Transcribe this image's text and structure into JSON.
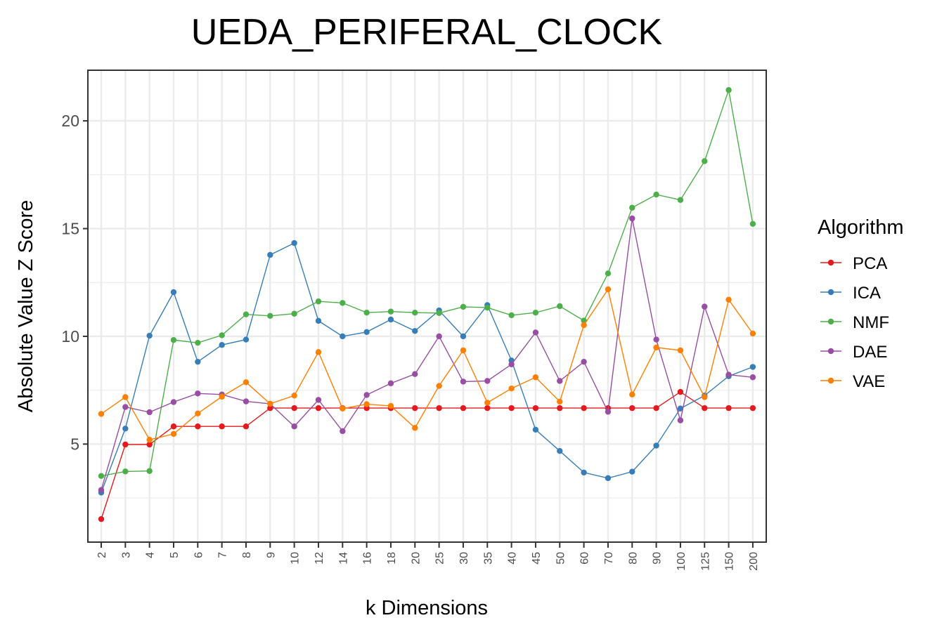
{
  "chart_data": {
    "type": "line",
    "title": "UEDA_PERIFERAL_CLOCK",
    "xlabel": "k Dimensions",
    "ylabel": "Absolute Value Z Score",
    "categories": [
      "2",
      "3",
      "4",
      "5",
      "6",
      "7",
      "8",
      "9",
      "10",
      "12",
      "14",
      "16",
      "18",
      "20",
      "25",
      "30",
      "35",
      "40",
      "45",
      "50",
      "60",
      "70",
      "80",
      "90",
      "100",
      "125",
      "150",
      "200"
    ],
    "ylim": [
      0.45,
      22.35
    ],
    "yticks": [
      5,
      10,
      15,
      20
    ],
    "grid": true,
    "legend": {
      "title": "Algorithm",
      "position": "right"
    },
    "series": [
      {
        "name": "PCA",
        "color": "#e41a1c",
        "values": [
          1.52,
          4.98,
          4.98,
          5.82,
          5.82,
          5.82,
          5.82,
          6.67,
          6.67,
          6.67,
          6.67,
          6.67,
          6.67,
          6.67,
          6.67,
          6.67,
          6.67,
          6.67,
          6.67,
          6.67,
          6.67,
          6.67,
          6.67,
          6.67,
          7.42,
          6.67,
          6.67,
          6.67
        ]
      },
      {
        "name": "ICA",
        "color": "#377eb8",
        "values": [
          2.75,
          5.72,
          10.03,
          12.05,
          8.82,
          9.6,
          9.85,
          13.78,
          14.33,
          10.72,
          10.0,
          10.2,
          10.78,
          10.25,
          11.2,
          10.0,
          11.45,
          8.88,
          5.67,
          4.68,
          3.68,
          3.42,
          3.72,
          4.93,
          6.65,
          7.25,
          8.15,
          8.58
        ]
      },
      {
        "name": "NMF",
        "color": "#4daf4a",
        "values": [
          3.52,
          3.73,
          3.75,
          9.83,
          9.7,
          10.05,
          11.02,
          10.95,
          11.05,
          11.62,
          11.55,
          11.1,
          11.15,
          11.1,
          11.08,
          11.37,
          11.33,
          10.98,
          11.1,
          11.4,
          10.73,
          12.92,
          15.97,
          16.58,
          16.33,
          18.13,
          21.43,
          15.22
        ]
      },
      {
        "name": "DAE",
        "color": "#984ea3",
        "values": [
          2.87,
          6.72,
          6.48,
          6.95,
          7.35,
          7.3,
          6.98,
          6.87,
          5.82,
          7.05,
          5.6,
          7.28,
          7.82,
          8.25,
          10.0,
          7.9,
          7.93,
          8.7,
          10.18,
          7.93,
          8.82,
          6.5,
          15.47,
          9.85,
          6.1,
          11.38,
          8.22,
          8.1
        ]
      },
      {
        "name": "VAE",
        "color": "#ff7f00",
        "values": [
          6.4,
          7.18,
          5.2,
          5.47,
          6.42,
          7.2,
          7.87,
          6.87,
          7.25,
          9.27,
          6.65,
          6.85,
          6.77,
          5.75,
          7.7,
          9.35,
          6.92,
          7.58,
          8.1,
          6.97,
          10.52,
          12.18,
          7.3,
          9.48,
          9.35,
          7.18,
          11.7,
          10.13
        ]
      }
    ]
  }
}
